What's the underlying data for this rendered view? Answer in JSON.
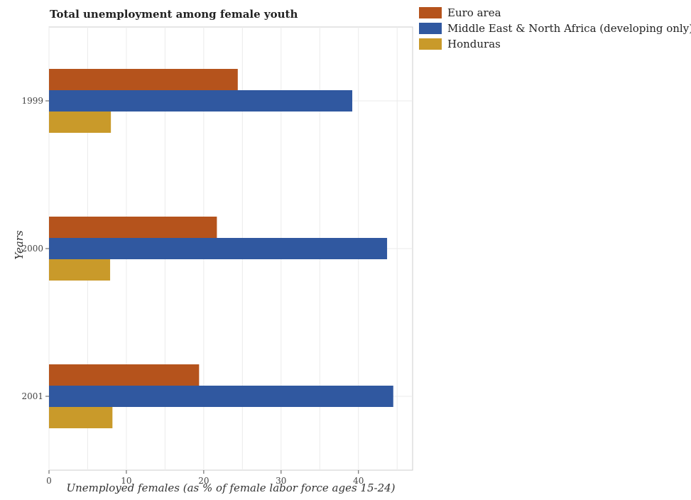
{
  "chart_data": {
    "type": "bar",
    "orientation": "horizontal",
    "title": "Total unemployment among female youth",
    "xlabel": "Unemployed females (as % of female labor force ages 15-24)",
    "ylabel": "Years",
    "categories": [
      "1999",
      "2000",
      "2001"
    ],
    "series": [
      {
        "name": "Euro area",
        "color": "#b5531c",
        "values": [
          24.4,
          21.7,
          19.4
        ]
      },
      {
        "name": "Middle East & North Africa (developing only)",
        "color": "#3058a0",
        "values": [
          39.2,
          43.7,
          44.5
        ]
      },
      {
        "name": "Honduras",
        "color": "#c99a2a",
        "values": [
          8.0,
          7.9,
          8.2
        ]
      }
    ],
    "xlim": [
      0,
      47
    ],
    "xticks": [
      0,
      10,
      20,
      30,
      40
    ],
    "xtick_labels": [
      "0",
      "10",
      "20",
      "30",
      "40"
    ],
    "grid": true,
    "legend_position": "top-right"
  }
}
